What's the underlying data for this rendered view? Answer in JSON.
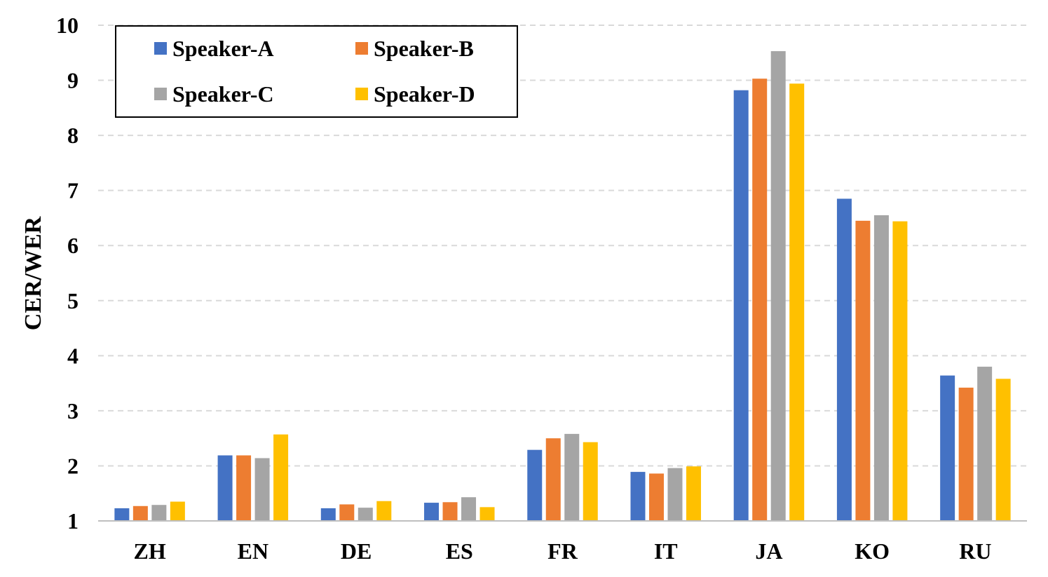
{
  "chart_data": {
    "type": "bar",
    "ylabel": "CER/WER",
    "xlabel": "",
    "ylim": [
      1,
      10
    ],
    "yticks": [
      1,
      2,
      3,
      4,
      5,
      6,
      7,
      8,
      9,
      10
    ],
    "grid": true,
    "legend_position": "top-left",
    "categories": [
      "ZH",
      "EN",
      "DE",
      "ES",
      "FR",
      "IT",
      "JA",
      "KO",
      "RU"
    ],
    "series": [
      {
        "name": "Speaker-A",
        "color": "#4472C4",
        "values": [
          1.23,
          2.19,
          1.23,
          1.33,
          2.29,
          1.89,
          8.82,
          6.85,
          3.64
        ]
      },
      {
        "name": "Speaker-B",
        "color": "#ED7D31",
        "values": [
          1.27,
          2.19,
          1.3,
          1.34,
          2.5,
          1.86,
          9.03,
          6.45,
          3.42
        ]
      },
      {
        "name": "Speaker-C",
        "color": "#A5A5A5",
        "values": [
          1.29,
          2.14,
          1.24,
          1.43,
          2.58,
          1.96,
          9.53,
          6.55,
          3.8
        ]
      },
      {
        "name": "Speaker-D",
        "color": "#FFC000",
        "values": [
          1.35,
          2.57,
          1.36,
          1.25,
          2.43,
          1.99,
          8.94,
          6.44,
          3.58
        ]
      }
    ]
  }
}
